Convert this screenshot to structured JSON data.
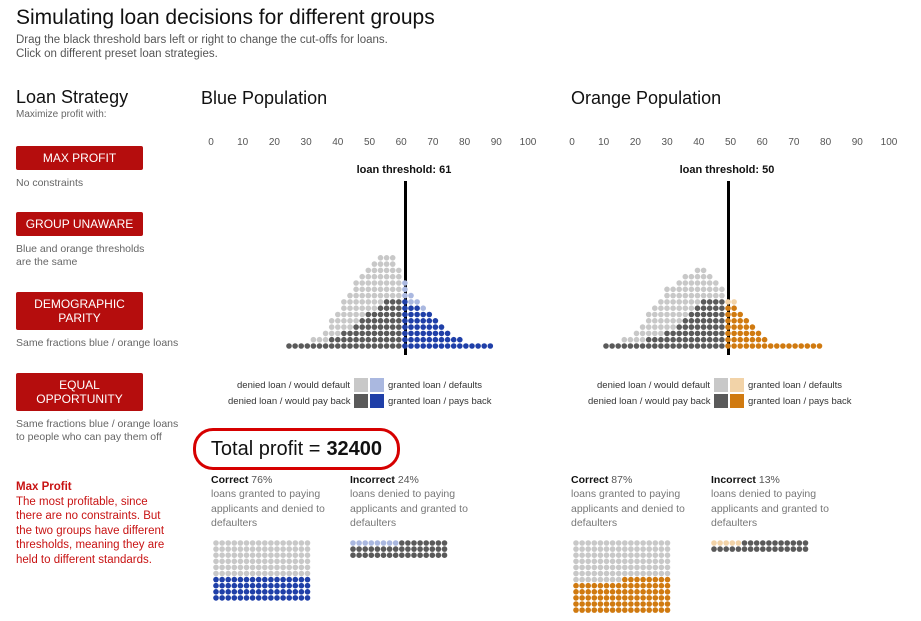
{
  "header": {
    "title": "Simulating loan decisions for different groups",
    "subtitle_line1": "Drag the black threshold bars left or right to change the cut-offs for loans.",
    "subtitle_line2": "Click on different preset loan strategies."
  },
  "strategy": {
    "title": "Loan Strategy",
    "subtitle": "Maximize profit with:",
    "buttons": [
      {
        "label": "MAX PROFIT",
        "desc": "No constraints"
      },
      {
        "label": "GROUP UNAWARE",
        "desc": "Blue and orange thresholds are the same"
      },
      {
        "label": "DEMOGRAPHIC PARITY",
        "desc": "Same fractions blue / orange loans"
      },
      {
        "label": "EQUAL OPPORTUNITY",
        "desc": "Same fractions blue / orange loans to people who can pay them off"
      }
    ]
  },
  "explanation": {
    "title": "Max Profit",
    "text": "The most profitable, since there are no constraints. But the two groups have different thresholds, meaning they are held to different standards."
  },
  "axis_ticks": [
    "0",
    "10",
    "20",
    "30",
    "40",
    "50",
    "60",
    "70",
    "80",
    "90",
    "100"
  ],
  "blue": {
    "title": "Blue Population",
    "threshold_label": "loan threshold: 61",
    "threshold": 61,
    "legend": {
      "denied_default": "denied loan / would default",
      "denied_payback": "denied loan / would pay back",
      "granted_default": "granted loan / defaults",
      "granted_payback": "granted loan / pays back"
    },
    "correct_label": "Correct",
    "correct_pct": "76%",
    "correct_desc": "loans granted to paying applicants and denied to defaulters",
    "incorrect_label": "Incorrect",
    "incorrect_pct": "24%",
    "incorrect_desc": "loans denied to paying applicants and granted to defaulters"
  },
  "orange": {
    "title": "Orange Population",
    "threshold_label": "loan threshold: 50",
    "threshold": 50,
    "legend": {
      "denied_default": "denied loan / would default",
      "denied_payback": "denied loan / would pay back",
      "granted_default": "granted loan / defaults",
      "granted_payback": "granted loan / pays back"
    },
    "correct_label": "Correct",
    "correct_pct": "87%",
    "correct_desc": "loans granted to paying applicants and denied to defaulters",
    "incorrect_label": "Incorrect",
    "incorrect_pct": "13%",
    "incorrect_desc": "loans denied to paying applicants and granted to defaulters"
  },
  "profit": {
    "label": "Total profit =",
    "value": "32400"
  },
  "colors": {
    "button": "#b50d0d",
    "denied_default": "#c8c8c8",
    "denied_payback": "#5a5a5a",
    "blue_granted_default": "#aab8e0",
    "blue_granted_payback": "#1f3fa8",
    "orange_granted_default": "#f2d3a8",
    "orange_granted_payback": "#d07a10",
    "profit_border": "#d60000"
  }
}
